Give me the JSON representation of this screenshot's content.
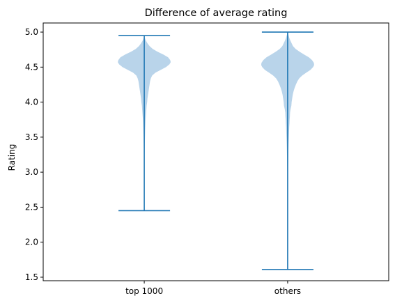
{
  "chart_data": {
    "type": "violin",
    "title": "Difference of average rating",
    "xlabel": "",
    "ylabel": "Rating",
    "ylim": [
      1.45,
      5.13
    ],
    "yticks": [
      1.5,
      2.0,
      2.5,
      3.0,
      3.5,
      4.0,
      4.5,
      5.0
    ],
    "ytick_labels": [
      "1.5",
      "2.0",
      "2.5",
      "3.0",
      "3.5",
      "4.0",
      "4.5",
      "5.0"
    ],
    "categories": [
      "top 1000",
      "others"
    ],
    "grid": false,
    "colors": {
      "body": "#b9d4ea",
      "line": "#1f77b4"
    },
    "series": [
      {
        "min": 2.45,
        "max": 4.95,
        "density": [
          [
            4.95,
            0.0
          ],
          [
            4.92,
            0.02
          ],
          [
            4.88,
            0.06
          ],
          [
            4.84,
            0.12
          ],
          [
            4.8,
            0.2
          ],
          [
            4.76,
            0.32
          ],
          [
            4.72,
            0.5
          ],
          [
            4.68,
            0.72
          ],
          [
            4.64,
            0.9
          ],
          [
            4.6,
            0.98
          ],
          [
            4.57,
            1.0
          ],
          [
            4.54,
            0.95
          ],
          [
            4.5,
            0.82
          ],
          [
            4.46,
            0.62
          ],
          [
            4.42,
            0.42
          ],
          [
            4.38,
            0.3
          ],
          [
            4.34,
            0.25
          ],
          [
            4.3,
            0.22
          ],
          [
            4.25,
            0.2
          ],
          [
            4.2,
            0.18
          ],
          [
            4.15,
            0.16
          ],
          [
            4.1,
            0.14
          ],
          [
            4.05,
            0.12
          ],
          [
            4.0,
            0.11
          ],
          [
            3.95,
            0.09
          ],
          [
            3.9,
            0.08
          ],
          [
            3.85,
            0.07
          ],
          [
            3.8,
            0.06
          ],
          [
            3.75,
            0.05
          ],
          [
            3.7,
            0.045
          ],
          [
            3.6,
            0.035
          ],
          [
            3.5,
            0.028
          ],
          [
            3.4,
            0.02
          ],
          [
            3.3,
            0.014
          ],
          [
            3.2,
            0.009
          ],
          [
            3.1,
            0.006
          ],
          [
            3.0,
            0.004
          ],
          [
            2.9,
            0.003
          ],
          [
            2.8,
            0.002
          ],
          [
            2.7,
            0.0015
          ],
          [
            2.6,
            0.001
          ],
          [
            2.5,
            0.0007
          ],
          [
            2.45,
            0.0
          ]
        ]
      },
      {
        "min": 1.61,
        "max": 5.0,
        "density": [
          [
            5.0,
            0.0
          ],
          [
            4.96,
            0.03
          ],
          [
            4.92,
            0.06
          ],
          [
            4.88,
            0.1
          ],
          [
            4.84,
            0.15
          ],
          [
            4.8,
            0.2
          ],
          [
            4.76,
            0.3
          ],
          [
            4.72,
            0.45
          ],
          [
            4.68,
            0.62
          ],
          [
            4.64,
            0.8
          ],
          [
            4.6,
            0.92
          ],
          [
            4.56,
            0.99
          ],
          [
            4.53,
            1.0
          ],
          [
            4.5,
            0.96
          ],
          [
            4.46,
            0.86
          ],
          [
            4.42,
            0.7
          ],
          [
            4.38,
            0.55
          ],
          [
            4.34,
            0.44
          ],
          [
            4.3,
            0.37
          ],
          [
            4.25,
            0.31
          ],
          [
            4.2,
            0.26
          ],
          [
            4.15,
            0.22
          ],
          [
            4.1,
            0.19
          ],
          [
            4.05,
            0.17
          ],
          [
            4.0,
            0.15
          ],
          [
            3.95,
            0.14
          ],
          [
            3.9,
            0.11
          ],
          [
            3.85,
            0.09
          ],
          [
            3.8,
            0.085
          ],
          [
            3.75,
            0.075
          ],
          [
            3.7,
            0.07
          ],
          [
            3.65,
            0.06
          ],
          [
            3.6,
            0.055
          ],
          [
            3.55,
            0.05
          ],
          [
            3.5,
            0.045
          ],
          [
            3.4,
            0.035
          ],
          [
            3.3,
            0.028
          ],
          [
            3.2,
            0.022
          ],
          [
            3.1,
            0.016
          ],
          [
            3.0,
            0.011
          ],
          [
            2.9,
            0.008
          ],
          [
            2.8,
            0.006
          ],
          [
            2.6,
            0.004
          ],
          [
            2.4,
            0.003
          ],
          [
            2.2,
            0.002
          ],
          [
            2.0,
            0.0015
          ],
          [
            1.8,
            0.001
          ],
          [
            1.61,
            0.0
          ]
        ]
      }
    ]
  }
}
